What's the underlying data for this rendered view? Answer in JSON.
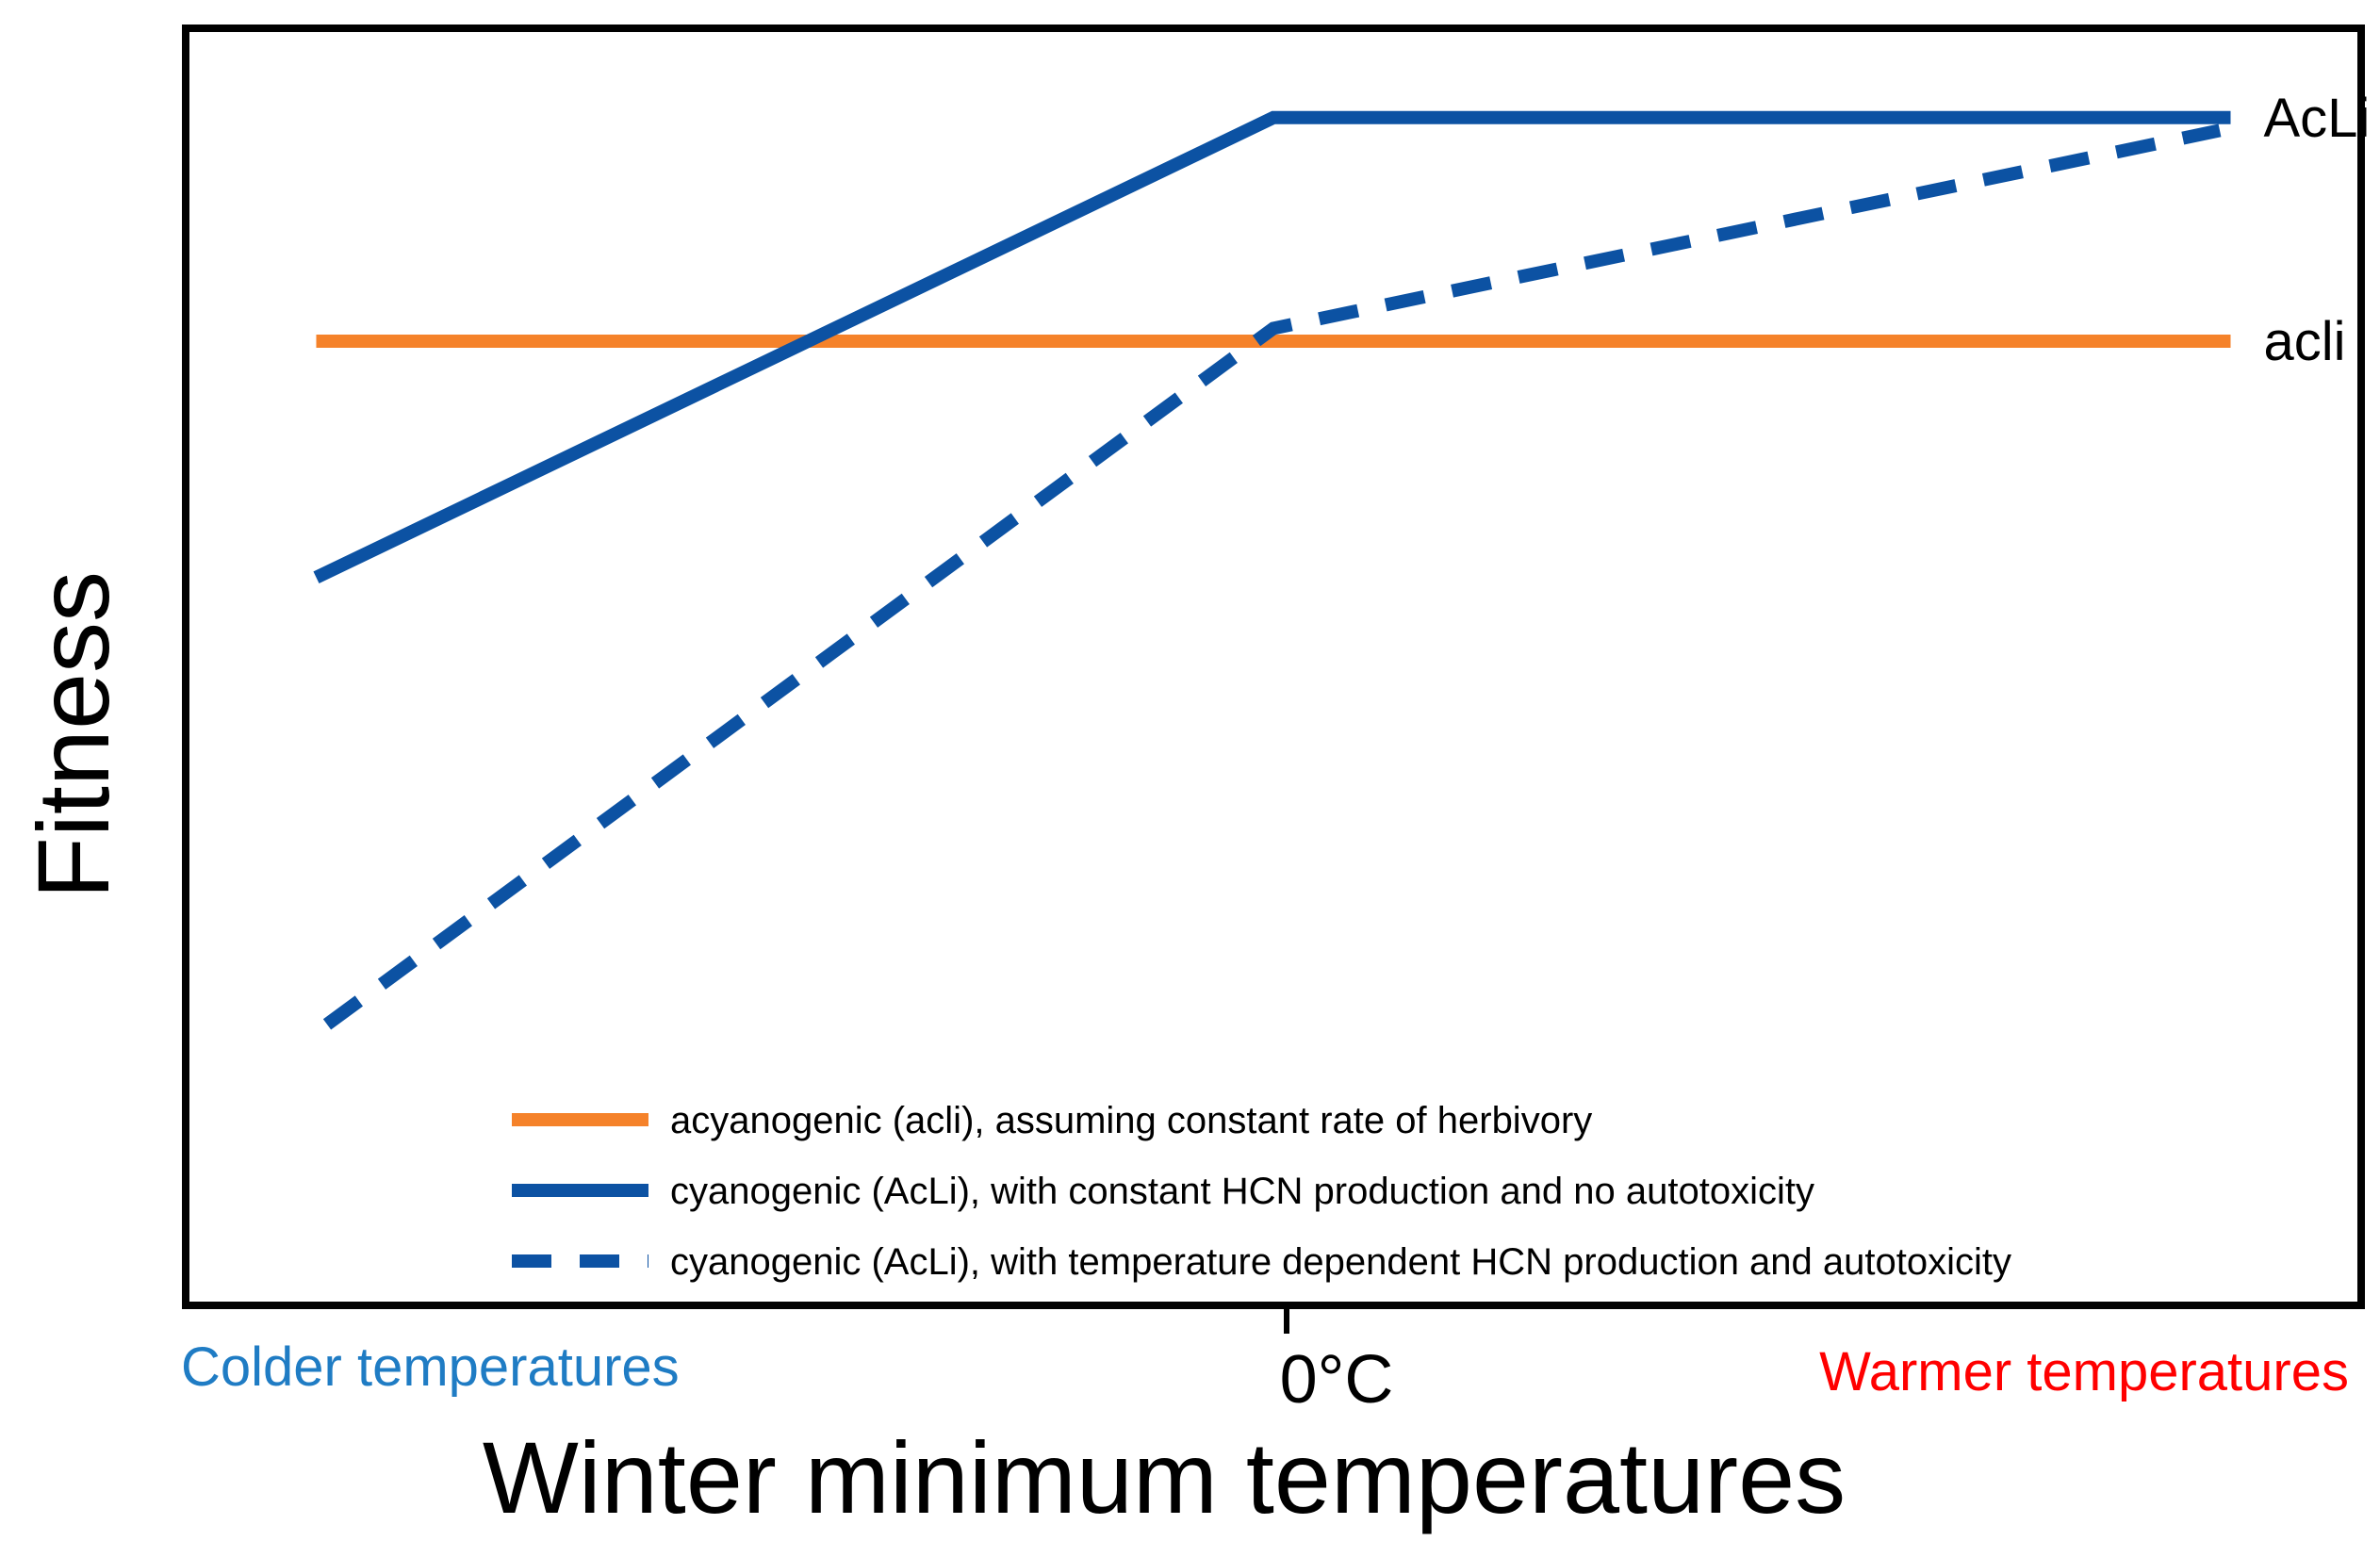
{
  "chart_data": {
    "type": "line",
    "title": "",
    "xlabel": "Winter minimum temperatures",
    "ylabel": "Fitness",
    "x_tick_label": "0°C",
    "x_tick_value": 0,
    "xlim": [
      -1,
      1
    ],
    "ylim": [
      0,
      1
    ],
    "x_end_labels": {
      "left": "Colder temperatures",
      "right": "Warmer temperatures",
      "left_color": "#1f7cc4",
      "right_color": "#ff0000"
    },
    "series": [
      {
        "key": "acyanogenic",
        "name": "acyanogenic (acli), assuming constant rate of herbivory",
        "line_label": "acli",
        "color": "#f5822a",
        "style": "solid",
        "x": [
          -0.88,
          0,
          0.88
        ],
        "y": [
          0.755,
          0.755,
          0.755
        ]
      },
      {
        "key": "cyanogenic_constant",
        "name": "cyanogenic (AcLi), with constant HCN production and no autotoxicity",
        "line_label": "AcLi",
        "color": "#0c52a3",
        "style": "solid",
        "x": [
          -0.88,
          0,
          0.88
        ],
        "y": [
          0.57,
          0.93,
          0.93
        ]
      },
      {
        "key": "cyanogenic_temp",
        "name": "cyanogenic (AcLi), with temperature dependent HCN production and autotoxicity",
        "line_label": "",
        "color": "#0c52a3",
        "style": "dashed",
        "x": [
          -0.87,
          0,
          0.87
        ],
        "y": [
          0.22,
          0.765,
          0.92
        ]
      }
    ],
    "legend_position": "bottom-right",
    "grid": false
  }
}
